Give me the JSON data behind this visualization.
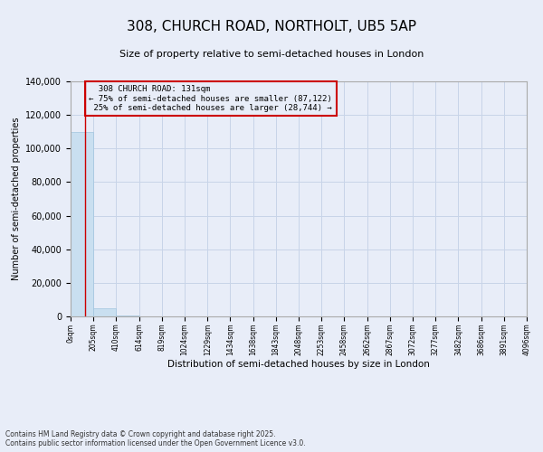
{
  "title": "308, CHURCH ROAD, NORTHOLT, UB5 5AP",
  "subtitle": "Size of property relative to semi-detached houses in London",
  "xlabel": "Distribution of semi-detached houses by size in London",
  "ylabel": "Number of semi-detached properties",
  "bin_edges": [
    0,
    205,
    410,
    614,
    819,
    1024,
    1229,
    1434,
    1638,
    1843,
    2048,
    2253,
    2458,
    2662,
    2867,
    3072,
    3277,
    3482,
    3686,
    3891,
    4096
  ],
  "bin_counts": [
    110000,
    5000,
    400,
    200,
    100,
    60,
    40,
    30,
    20,
    15,
    10,
    8,
    6,
    5,
    4,
    3,
    3,
    2,
    2,
    1
  ],
  "bar_color": "#c9dff0",
  "bar_edge_color": "#a0c4de",
  "property_size": 131,
  "property_label": "308 CHURCH ROAD: 131sqm",
  "pct_smaller": 75,
  "n_smaller": 87122,
  "pct_larger": 25,
  "n_larger": 28744,
  "vline_color": "#cc0000",
  "annotation_box_color": "#cc0000",
  "grid_color": "#c8d4e8",
  "background_color": "#e8edf8",
  "footer_line1": "Contains HM Land Registry data © Crown copyright and database right 2025.",
  "footer_line2": "Contains public sector information licensed under the Open Government Licence v3.0.",
  "tick_labels": [
    "0sqm",
    "205sqm",
    "410sqm",
    "614sqm",
    "819sqm",
    "1024sqm",
    "1229sqm",
    "1434sqm",
    "1638sqm",
    "1843sqm",
    "2048sqm",
    "2253sqm",
    "2458sqm",
    "2662sqm",
    "2867sqm",
    "3072sqm",
    "3277sqm",
    "3482sqm",
    "3686sqm",
    "3891sqm",
    "4096sqm"
  ],
  "ylim": [
    0,
    140000
  ],
  "yticks": [
    0,
    20000,
    40000,
    60000,
    80000,
    100000,
    120000,
    140000
  ]
}
